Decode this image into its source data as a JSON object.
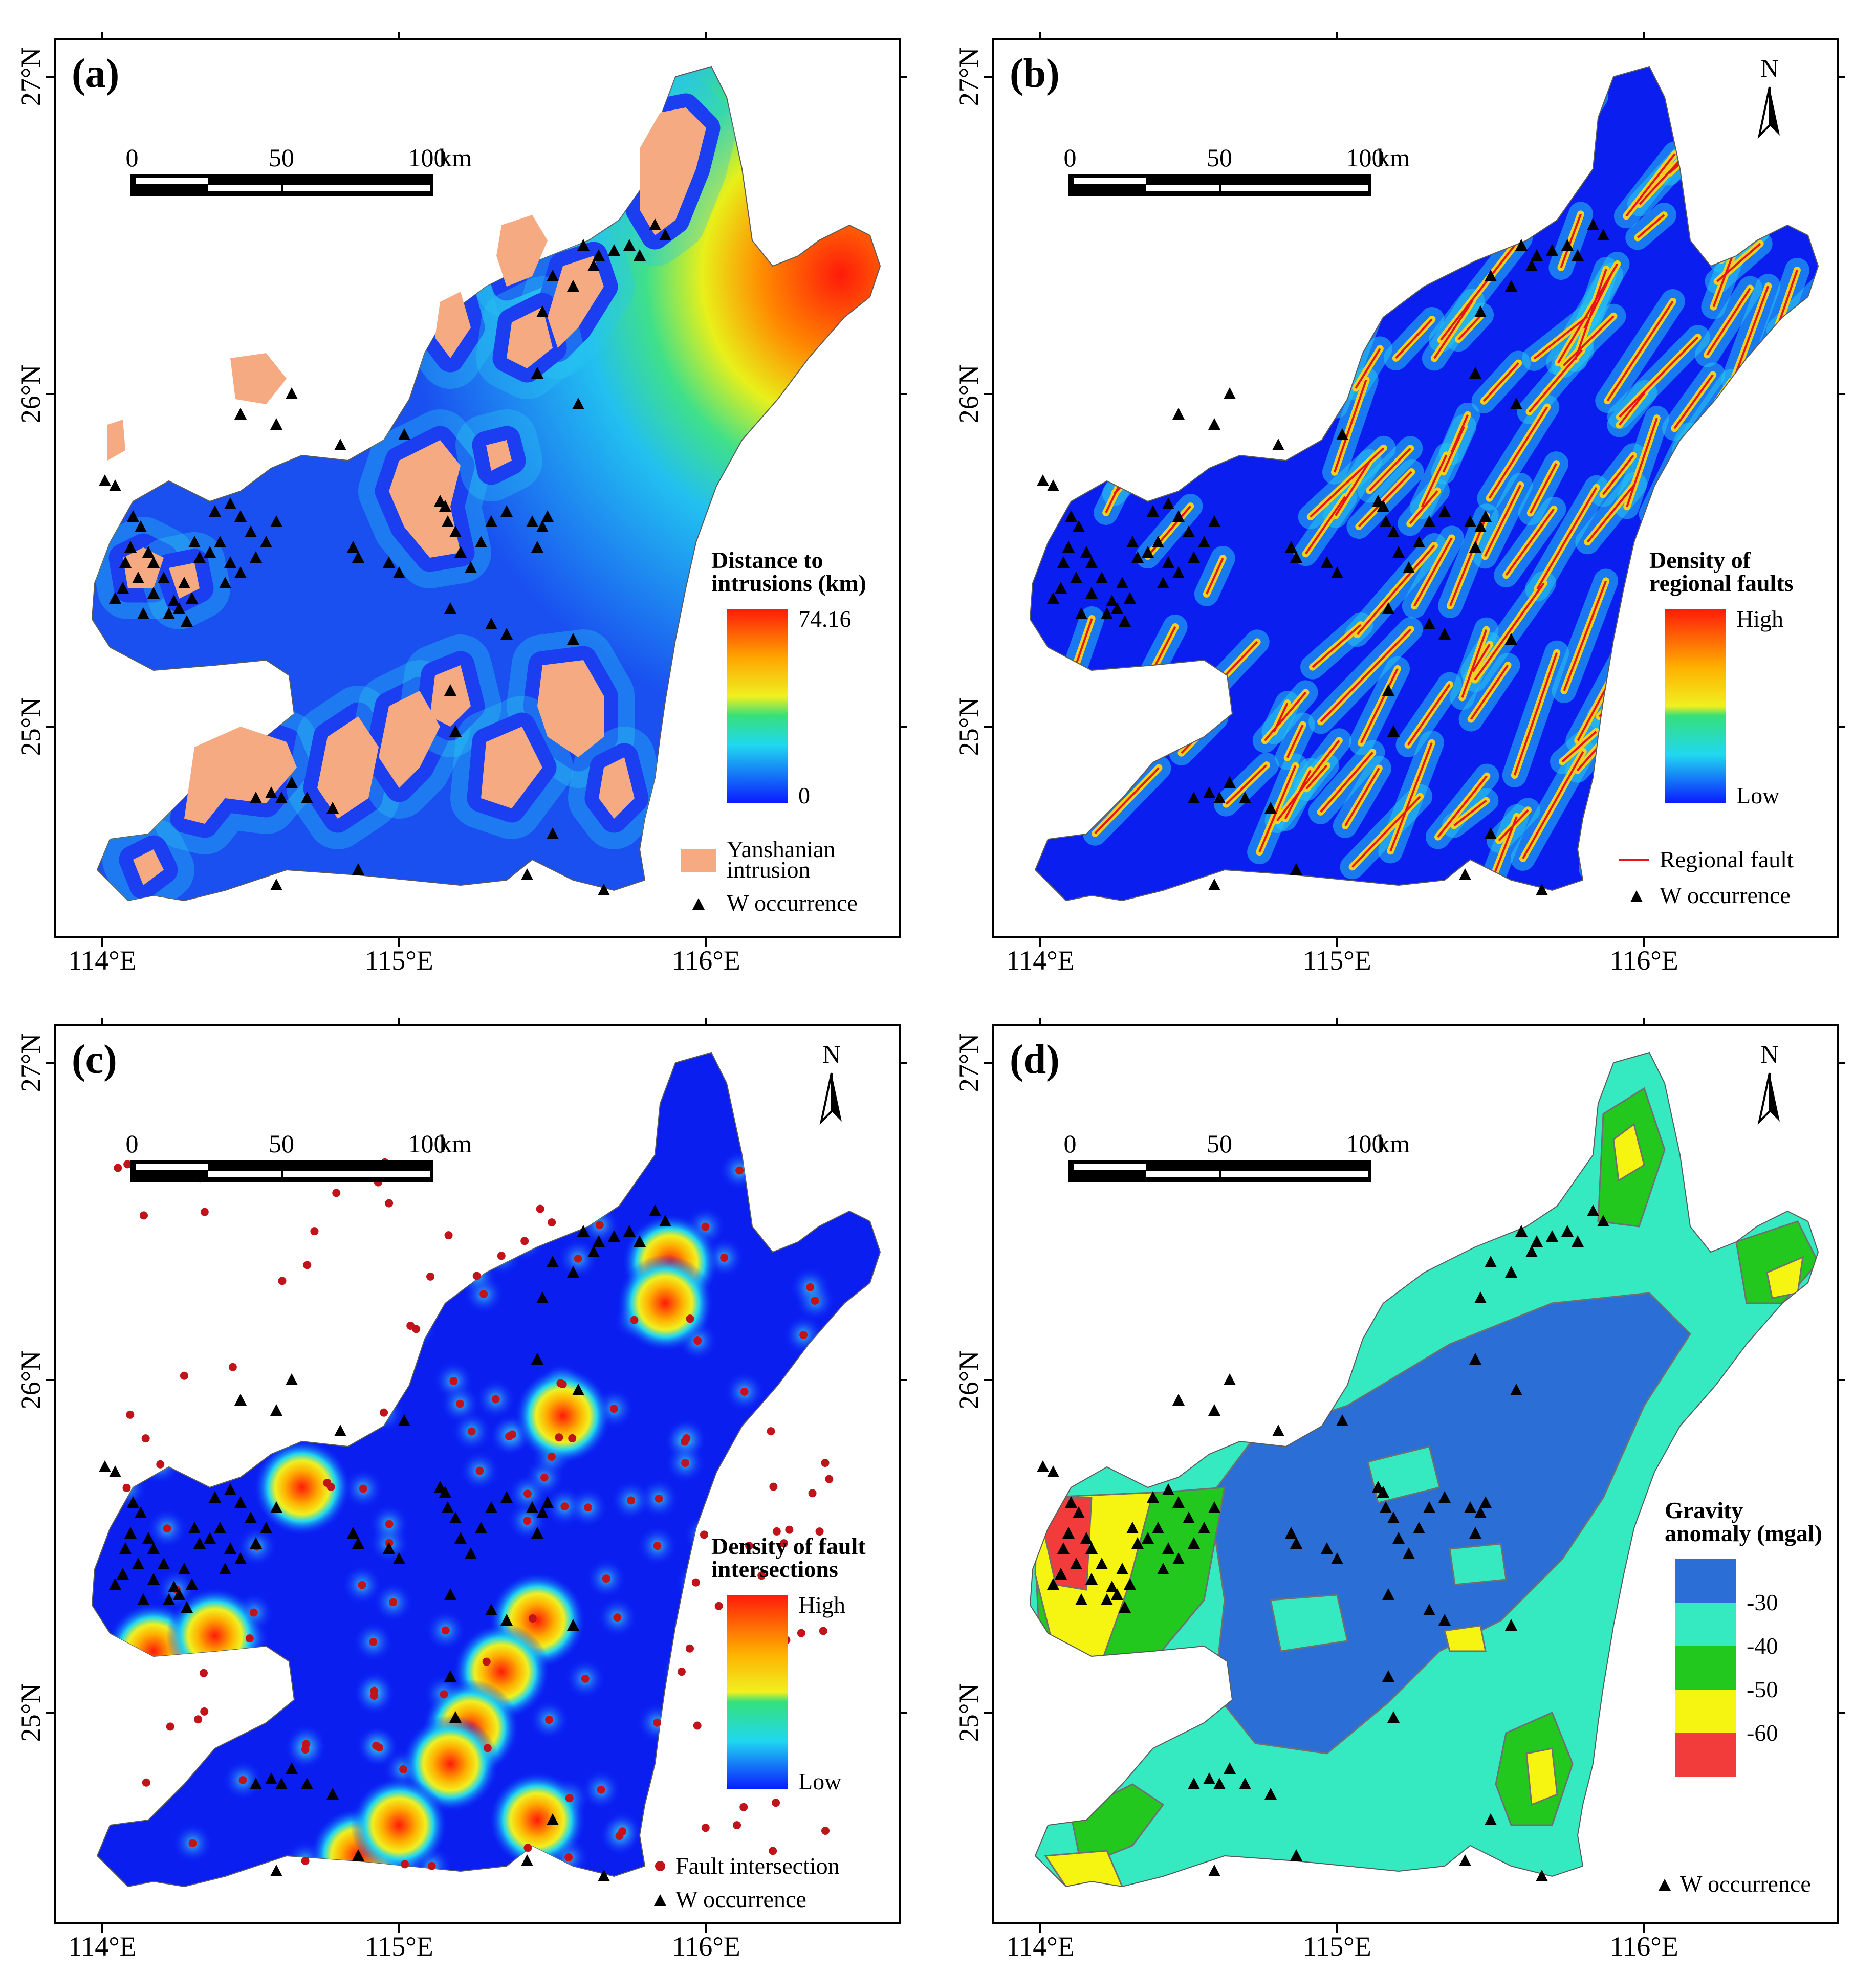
{
  "axes": {
    "lon_ticks": [
      "114°E",
      "115°E",
      "116°E"
    ],
    "lat_ticks": [
      "27°N",
      "26°N",
      "25°N"
    ]
  },
  "scale_bar": {
    "labels": [
      "0",
      "50",
      "100"
    ],
    "unit": "km"
  },
  "north_label": "N",
  "occurrence_label": "W occurrence",
  "panels": [
    {
      "id": "a",
      "label": "(a)",
      "legend_title": [
        "Distance to",
        "intrusions (km)"
      ],
      "legend_max": "74.16",
      "legend_min": "0",
      "extra_legend": [
        "Yanshanian",
        "intrusion"
      ],
      "colors": {
        "intrusion": "#f5aa82"
      }
    },
    {
      "id": "b",
      "label": "(b)",
      "legend_title": [
        "Density of",
        "regional faults"
      ],
      "legend_max": "High",
      "legend_min": "Low",
      "extra_legend": [
        "Regional fault"
      ],
      "colors": {
        "fault": "#e8141a"
      }
    },
    {
      "id": "c",
      "label": "(c)",
      "legend_title": [
        "Density of fault",
        "intersections"
      ],
      "legend_max": "High",
      "legend_min": "Low",
      "extra_legend": [
        "Fault intersection"
      ],
      "colors": {
        "intersection": "#c0141a"
      }
    },
    {
      "id": "d",
      "label": "(d)",
      "legend_title": [
        "Gravity",
        "anomaly (mgal)"
      ],
      "classes": [
        "-30",
        "-40",
        "-50",
        "-60"
      ],
      "colors": {
        "c1": "#2a6ed6",
        "c2": "#35e9c0",
        "c3": "#22c81e",
        "c4": "#f5f511",
        "c5": "#f23c3c"
      }
    }
  ]
}
